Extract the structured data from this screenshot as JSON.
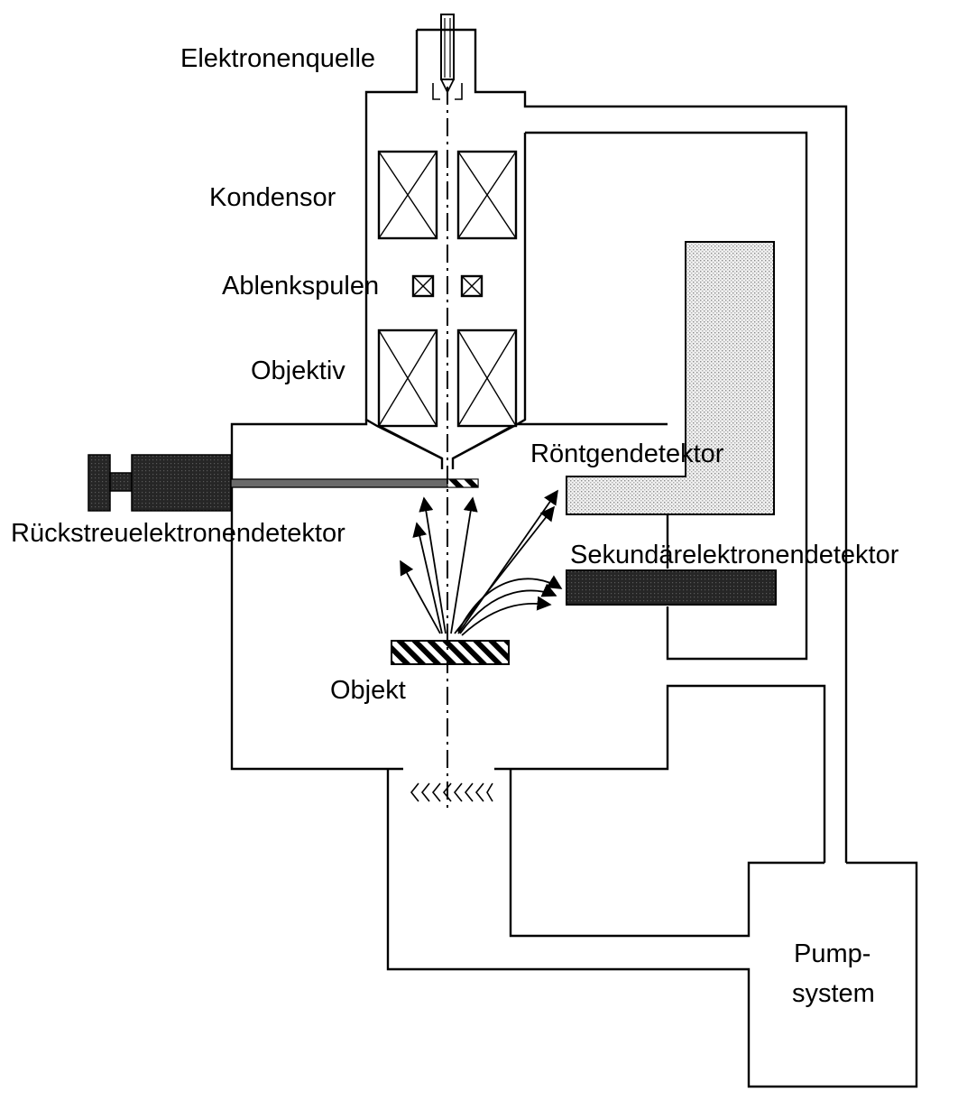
{
  "labels": {
    "source": "Elektronenquelle",
    "condenser": "Kondensor",
    "deflection": "Ablenkspulen",
    "objective": "Objektiv",
    "xray": "Röntgendetektor",
    "bse": "Rückstreuelektronendetektor",
    "se": "Sekundärelektronendetektor",
    "specimen": "Objekt",
    "pump_line1": "Pump-",
    "pump_line2": "system"
  },
  "colors": {
    "line": "#000000",
    "detector_dark": "#2c2c2c",
    "detector_light": "#e2e2e2",
    "background": "#ffffff"
  },
  "icons": {
    "coil": "boxed-x",
    "specimen": "hatched-bar",
    "pump_valve": "chevron-baffle"
  }
}
